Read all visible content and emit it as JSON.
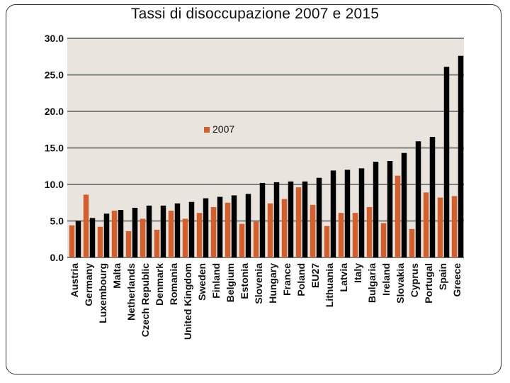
{
  "chart_data": {
    "type": "bar",
    "title": "Tassi di disoccupazione  2007 e 2015",
    "ylim": [
      0,
      30
    ],
    "yticks": [
      "0.0",
      "5.0",
      "10.0",
      "15.0",
      "20.0",
      "25.0",
      "30.0"
    ],
    "grid": true,
    "legend_position": "center",
    "categories": [
      "Austria",
      "Germany",
      "Luxembourg",
      "Malta",
      "Netherlands",
      "Czech Republic",
      "Denmark",
      "Romania",
      "United Kingdom",
      "Sweden",
      "Finland",
      "Belgium",
      "Estonia",
      "Slovenia",
      "Hungary",
      "France",
      "Poland",
      "EU27",
      "Lithuania",
      "Latvia",
      "Italy",
      "Bulgaria",
      "Ireland",
      "Slovakia",
      "Cyprus",
      "Portugal",
      "Spain",
      "Greece"
    ],
    "series": [
      {
        "name": "2007",
        "color": "#d2602e",
        "values": [
          4.4,
          8.6,
          4.2,
          6.4,
          3.6,
          5.3,
          3.8,
          6.4,
          5.3,
          6.1,
          6.9,
          7.5,
          4.6,
          4.9,
          7.4,
          8.0,
          9.6,
          7.2,
          4.3,
          6.1,
          6.1,
          6.9,
          4.7,
          11.2,
          3.9,
          8.9,
          8.2,
          8.4
        ]
      },
      {
        "name": "",
        "color": "#000000",
        "values": [
          5.0,
          5.4,
          6.0,
          6.5,
          6.8,
          7.1,
          7.1,
          7.4,
          7.6,
          8.1,
          8.3,
          8.5,
          8.7,
          10.2,
          10.3,
          10.4,
          10.4,
          10.9,
          11.9,
          12.0,
          12.2,
          13.1,
          13.2,
          14.3,
          15.9,
          16.5,
          26.1,
          27.6
        ]
      }
    ]
  }
}
